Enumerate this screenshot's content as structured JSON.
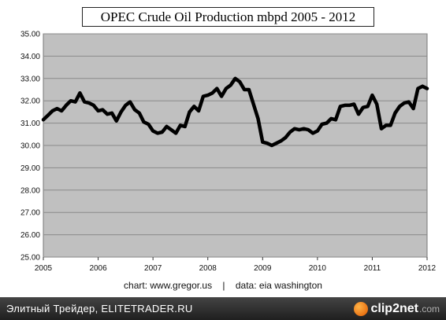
{
  "chart_data": {
    "type": "line",
    "title": "OPEC Crude Oil Production mbpd 2005 - 2012",
    "xlabel": "",
    "ylabel": "",
    "ylim": [
      25.0,
      35.0
    ],
    "xlim": [
      2005,
      2012
    ],
    "y_ticks": [
      "25.00",
      "26.00",
      "27.00",
      "28.00",
      "29.00",
      "30.00",
      "31.00",
      "32.00",
      "33.00",
      "34.00",
      "35.00"
    ],
    "x_ticks": [
      "2005",
      "2006",
      "2007",
      "2008",
      "2009",
      "2010",
      "2011",
      "2012"
    ],
    "grid": "horizontal",
    "plot_background": "#c0c0c0",
    "line_color": "#000000",
    "series": [
      {
        "x": [
          2005.0,
          2005.083,
          2005.167,
          2005.25,
          2005.333,
          2005.417,
          2005.5,
          2005.583,
          2005.667,
          2005.75,
          2005.833,
          2005.917,
          2006.0,
          2006.083,
          2006.167,
          2006.25,
          2006.333,
          2006.417,
          2006.5,
          2006.583,
          2006.667,
          2006.75,
          2006.833,
          2006.917,
          2007.0,
          2007.083,
          2007.167,
          2007.25,
          2007.333,
          2007.417,
          2007.5,
          2007.583,
          2007.667,
          2007.75,
          2007.833,
          2007.917,
          2008.0,
          2008.083,
          2008.167,
          2008.25,
          2008.333,
          2008.417,
          2008.5,
          2008.583,
          2008.667,
          2008.75,
          2008.833,
          2008.917,
          2009.0,
          2009.083,
          2009.167,
          2009.25,
          2009.333,
          2009.417,
          2009.5,
          2009.583,
          2009.667,
          2009.75,
          2009.833,
          2009.917,
          2010.0,
          2010.083,
          2010.167,
          2010.25,
          2010.333,
          2010.417,
          2010.5,
          2010.583,
          2010.667,
          2010.75,
          2010.833,
          2010.917,
          2011.0,
          2011.083,
          2011.167,
          2011.25,
          2011.333,
          2011.417,
          2011.5,
          2011.583,
          2011.667,
          2011.75,
          2011.833,
          2011.917,
          2012.0
        ],
        "y": [
          31.15,
          31.35,
          31.55,
          31.65,
          31.55,
          31.8,
          32.0,
          31.95,
          32.35,
          31.95,
          31.9,
          31.8,
          31.55,
          31.6,
          31.4,
          31.45,
          31.1,
          31.5,
          31.8,
          31.95,
          31.6,
          31.45,
          31.05,
          30.95,
          30.65,
          30.55,
          30.6,
          30.85,
          30.7,
          30.55,
          30.9,
          30.85,
          31.5,
          31.75,
          31.55,
          32.2,
          32.25,
          32.35,
          32.55,
          32.2,
          32.55,
          32.7,
          33.0,
          32.85,
          32.5,
          32.5,
          31.85,
          31.2,
          30.15,
          30.1,
          30.0,
          30.1,
          30.2,
          30.35,
          30.6,
          30.75,
          30.7,
          30.75,
          30.7,
          30.55,
          30.65,
          30.95,
          31.0,
          31.2,
          31.15,
          31.75,
          31.8,
          31.8,
          31.85,
          31.4,
          31.7,
          31.75,
          32.25,
          31.85,
          30.75,
          30.9,
          30.9,
          31.45,
          31.75,
          31.9,
          31.95,
          31.65,
          32.55,
          32.65,
          32.55
        ]
      }
    ]
  },
  "credit": {
    "text": "chart: www.gregor.us    |    data: eia washington"
  },
  "footer": {
    "text": "Элитный Трейдер, ELITETRADER.RU",
    "watermark_name": "clip2net",
    "watermark_domain": ".com"
  }
}
